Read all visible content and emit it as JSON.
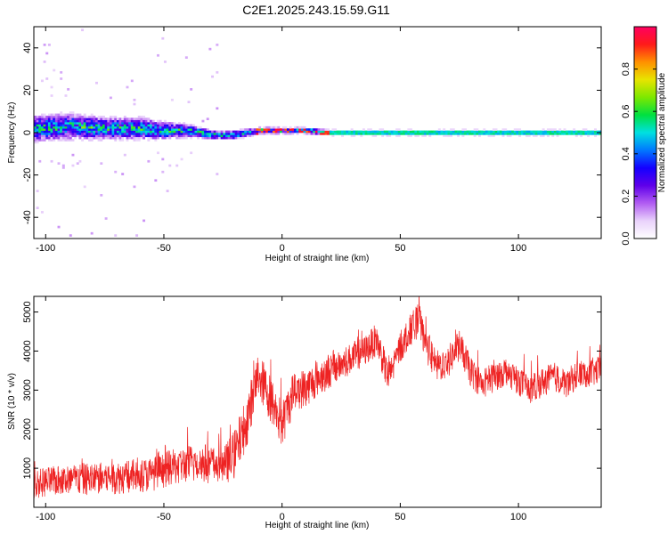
{
  "title": "C2E1.2025.243.15.59.G11",
  "chart_data": [
    {
      "type": "heatmap",
      "name": "spectrogram",
      "title": "C2E1.2025.243.15.59.G11",
      "xlabel": "Height of straight line (km)",
      "ylabel": "Frequency (Hz)",
      "xlim": [
        -105,
        135
      ],
      "ylim": [
        -50,
        50
      ],
      "xticks": [
        -100,
        -50,
        0,
        50,
        100
      ],
      "yticks": [
        -40,
        -20,
        0,
        20,
        40
      ],
      "colorbar": {
        "label": "Normalized spectral amplitude",
        "range": [
          0,
          1
        ],
        "ticks": [
          "0.0",
          "0.2",
          "0.4",
          "0.6",
          "0.8"
        ],
        "tick_values": [
          0,
          0.2,
          0.4,
          0.6,
          0.8
        ],
        "colors": [
          "#ffffff",
          "#e9d2fb",
          "#b15cf2",
          "#5f00ea",
          "#1400ff",
          "#0078ff",
          "#00e0e0",
          "#00e040",
          "#7de800",
          "#e8e400",
          "#ff9000",
          "#ff1a1a",
          "#ff0060"
        ]
      },
      "ridge": {
        "height_km": [
          -105,
          -90,
          -75,
          -60,
          -50,
          -40,
          -30,
          -20,
          -10,
          0,
          10,
          20,
          50,
          100,
          135
        ],
        "frequency_hz": [
          2,
          3,
          2,
          2,
          1,
          1,
          -1,
          -1,
          1,
          1,
          1,
          0,
          0,
          0,
          0
        ],
        "band_halfwidth_hz": [
          6,
          6,
          5,
          5,
          4,
          3,
          2,
          2,
          1.5,
          1.5,
          1.5,
          1.5,
          1.5,
          1.5,
          1.5
        ]
      }
    },
    {
      "type": "line",
      "name": "snr",
      "xlabel": "Height of straight line (km)",
      "ylabel": "SNR (10 * v/v)",
      "xlim": [
        -105,
        135
      ],
      "ylim": [
        0,
        5400
      ],
      "xticks": [
        -100,
        -50,
        0,
        50,
        100
      ],
      "yticks": [
        1000,
        2000,
        3000,
        4000,
        5000
      ],
      "color": "#ee2222",
      "series": [
        {
          "name": "SNR",
          "x": [
            -105,
            -95,
            -85,
            -75,
            -65,
            -55,
            -45,
            -35,
            -25,
            -20,
            -15,
            -10,
            -5,
            0,
            5,
            10,
            15,
            20,
            25,
            30,
            35,
            40,
            45,
            50,
            55,
            58,
            60,
            65,
            70,
            75,
            80,
            85,
            90,
            95,
            100,
            105,
            110,
            115,
            120,
            125,
            130,
            135
          ],
          "mean": [
            600,
            680,
            720,
            750,
            780,
            850,
            1050,
            1150,
            1050,
            1350,
            2200,
            3400,
            2800,
            2100,
            3000,
            3050,
            3300,
            3500,
            3650,
            3850,
            4000,
            4300,
            3300,
            4100,
            4600,
            4800,
            4300,
            3600,
            3700,
            4150,
            3450,
            3150,
            3350,
            3500,
            3250,
            3000,
            3200,
            3350,
            3150,
            3400,
            3450,
            3500
          ],
          "noise": [
            350,
            350,
            380,
            380,
            400,
            400,
            420,
            480,
            420,
            600,
            600,
            550,
            550,
            550,
            500,
            450,
            420,
            420,
            380,
            360,
            360,
            380,
            380,
            380,
            380,
            400,
            380,
            380,
            380,
            360,
            360,
            360,
            350,
            350,
            340,
            340,
            340,
            340,
            340,
            340,
            340,
            340
          ]
        }
      ]
    }
  ]
}
